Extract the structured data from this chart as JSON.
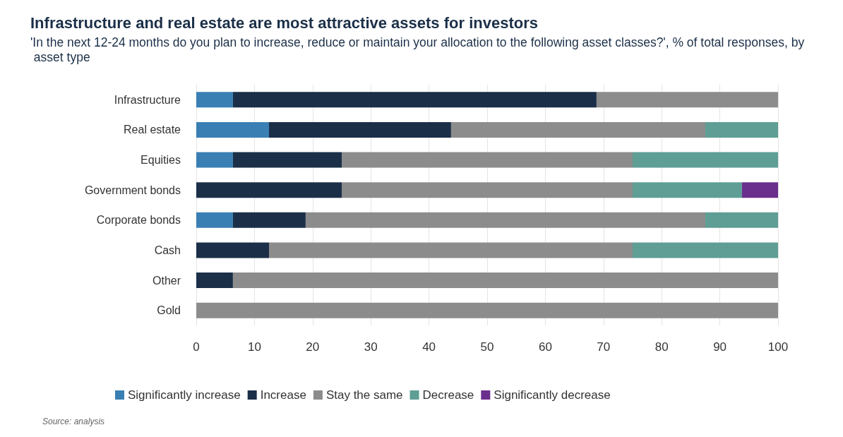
{
  "chart_data": {
    "type": "bar",
    "orientation": "horizontal",
    "stacked": true,
    "title": "Infrastructure and real estate are most attractive assets for investors",
    "subtitle": "'In the next 12-24 months do you plan to increase, reduce or maintain your allocation to the following asset classes?', % of total responses, by asset type",
    "categories": [
      "Infrastructure",
      "Real estate",
      "Equities",
      "Government bonds",
      "Corporate bonds",
      "Cash",
      "Other",
      "Gold"
    ],
    "series": [
      {
        "name": "Significantly increase",
        "color": "#3a7fb4",
        "values": [
          6.3,
          12.5,
          6.3,
          null,
          6.3,
          null,
          null,
          null
        ]
      },
      {
        "name": "Increase",
        "color": "#1b2f48",
        "values": [
          62.5,
          31.3,
          18.7,
          25,
          12.5,
          12.5,
          6.3,
          null
        ]
      },
      {
        "name": "Stay the same",
        "color": "#8c8c8c",
        "values": [
          31.2,
          43.7,
          50,
          50,
          68.7,
          62.5,
          93.7,
          100
        ]
      },
      {
        "name": "Decrease",
        "color": "#5e9e94",
        "values": [
          null,
          12.5,
          25,
          18.8,
          12.5,
          25,
          null,
          null
        ]
      },
      {
        "name": "Significantly decrease",
        "color": "#6a2e8c",
        "values": [
          null,
          null,
          null,
          6.2,
          null,
          null,
          null,
          null
        ]
      }
    ],
    "xlim": [
      0,
      100
    ],
    "xticks": [
      0,
      10,
      20,
      30,
      40,
      50,
      60,
      70,
      80,
      90,
      100
    ],
    "grid": "x",
    "legend": "bottom",
    "annotations": [
      "Source: analysis"
    ]
  }
}
